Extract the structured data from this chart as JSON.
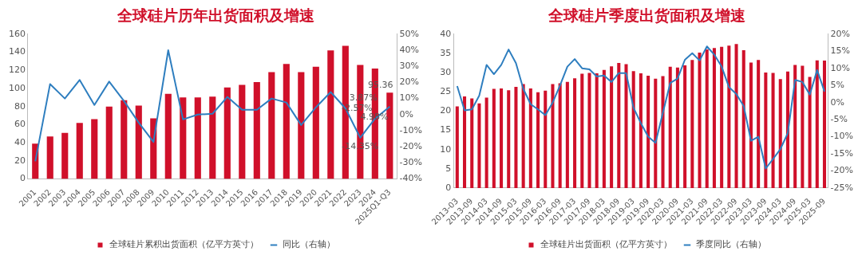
{
  "chart_data": [
    {
      "type": "bar",
      "title": "全球硅片历年出货面积及增速",
      "categories": [
        "2001",
        "2002",
        "2003",
        "2004",
        "2005",
        "2006",
        "2007",
        "2008",
        "2009",
        "2010",
        "2011",
        "2012",
        "2013",
        "2014",
        "2015",
        "2016",
        "2017",
        "2018",
        "2019",
        "2020",
        "2021",
        "2022",
        "2023",
        "2024",
        "2025Q1-Q3"
      ],
      "series": [
        {
          "name": "全球硅片累积出货面积（亿平方英寸）",
          "color": "#d0102a",
          "values": [
            39,
            47,
            51,
            62,
            66,
            80,
            87,
            81,
            67,
            94,
            90,
            90,
            91,
            101,
            104,
            107,
            118,
            127,
            118,
            124,
            142,
            147,
            126,
            122,
            95.36
          ],
          "value_labels": [
            null,
            null,
            null,
            null,
            null,
            null,
            null,
            null,
            null,
            null,
            null,
            null,
            null,
            null,
            null,
            null,
            null,
            null,
            null,
            null,
            null,
            null,
            null,
            null,
            "95.36"
          ]
        },
        {
          "name": "同比（右轴）",
          "type": "line",
          "axis": "y2",
          "color": "#2e7ebf",
          "values": [
            -29,
            19,
            10,
            21.5,
            6,
            20.5,
            8.5,
            -5,
            -17,
            40,
            -3,
            0,
            0.5,
            11,
            3,
            3,
            10,
            7.5,
            -6.5,
            4.5,
            14,
            3.87,
            -14.35,
            -2.57,
            4.98
          ],
          "value_labels": [
            null,
            null,
            null,
            null,
            null,
            null,
            null,
            null,
            null,
            null,
            null,
            null,
            null,
            null,
            null,
            null,
            null,
            null,
            null,
            null,
            null,
            "3.87%",
            "-14.35%",
            "-2.57%",
            "4.98%"
          ]
        }
      ],
      "ylim": [
        0,
        160
      ],
      "yticks": [
        0,
        20,
        40,
        60,
        80,
        100,
        120,
        140,
        160
      ],
      "y2lim": [
        -40,
        50
      ],
      "y2ticks": [
        {
          "value": -40,
          "label": "-40%"
        },
        {
          "value": -30,
          "label": "-30%"
        },
        {
          "value": -20,
          "label": "-20%"
        },
        {
          "value": -10,
          "label": "-10%"
        },
        {
          "value": 0,
          "label": "0%"
        },
        {
          "value": 10,
          "label": "10%"
        },
        {
          "value": 20,
          "label": "20%"
        },
        {
          "value": 30,
          "label": "30%"
        },
        {
          "value": 40,
          "label": "40%"
        },
        {
          "value": 50,
          "label": "50%"
        }
      ],
      "grid": false,
      "legend": "bottom",
      "marker": "none",
      "line_style": "solid"
    },
    {
      "type": "bar",
      "title": "全球硅片季度出货面积及增速",
      "categories": [
        "2013-03",
        null,
        "2013-09",
        null,
        "2014-03",
        null,
        "2014-09",
        null,
        "2015-03",
        null,
        "2015-09",
        null,
        "2016-03",
        null,
        "2016-09",
        null,
        "2017-03",
        null,
        "2017-09",
        null,
        "2018-03",
        null,
        "2018-09",
        null,
        "2019-03",
        null,
        "2019-09",
        null,
        "2020-03",
        null,
        "2020-09",
        null,
        "2021-03",
        null,
        "2021-09",
        null,
        "2022-03",
        null,
        "2022-09",
        null,
        "2023-03",
        null,
        "2023-09",
        null,
        "2024-03",
        null,
        "2024-09",
        null,
        "2025-03",
        null,
        "2025-09"
      ],
      "series": [
        {
          "name": "全球硅片出货面积（亿平方英寸）",
          "color": "#d0102a",
          "values": [
            21.2,
            23.8,
            23.3,
            22,
            23.5,
            25.8,
            25.9,
            25.4,
            26.3,
            27,
            25.9,
            24.9,
            25.3,
            27,
            27.2,
            27.6,
            28.5,
            29.7,
            29.9,
            29.8,
            30.7,
            31.6,
            32.5,
            32.2,
            30.4,
            29.8,
            29.2,
            28.4,
            29.1,
            31.5,
            31.3,
            31.9,
            33.3,
            35.2,
            36,
            36.4,
            36.7,
            37,
            37.4,
            35.8,
            32.6,
            33.3,
            30,
            29.9,
            28.3,
            30.3,
            32,
            31.8,
            28.9,
            33.2,
            33.1
          ]
        },
        {
          "name": "季度同比（右轴）",
          "type": "line",
          "axis": "y2",
          "color": "#2e7ebf",
          "values": [
            4.8,
            -2.3,
            -2,
            2,
            11,
            8.3,
            11,
            15.5,
            11.5,
            4,
            -0.5,
            -2,
            -3.7,
            0,
            5,
            10.5,
            12.7,
            10,
            9.7,
            7.6,
            7.9,
            6,
            8.6,
            8.6,
            -1.5,
            -6,
            -10,
            -11.8,
            -3,
            5.7,
            7,
            12.5,
            14.4,
            12.3,
            16.4,
            14,
            10.5,
            4.5,
            2.5,
            -1,
            -11.2,
            -10,
            -19.3,
            -16.5,
            -13.6,
            -9,
            6.6,
            6,
            2.3,
            9.5,
            3.2
          ]
        }
      ],
      "ylim": [
        0,
        40
      ],
      "yticks": [
        0,
        5,
        10,
        15,
        20,
        25,
        30,
        35,
        40
      ],
      "y2lim": [
        -25,
        20
      ],
      "y2ticks": [
        {
          "value": -25,
          "label": "-25%"
        },
        {
          "value": -20,
          "label": "-20%"
        },
        {
          "value": -15,
          "label": "-15%"
        },
        {
          "value": -10,
          "label": "-10%"
        },
        {
          "value": -5,
          "label": "-5%"
        },
        {
          "value": 0,
          "label": "0%"
        },
        {
          "value": 5,
          "label": "5%"
        },
        {
          "value": 10,
          "label": "10%"
        },
        {
          "value": 15,
          "label": "15%"
        },
        {
          "value": 20,
          "label": "20%"
        }
      ],
      "grid": false,
      "legend": "bottom",
      "marker": "none",
      "line_style": "solid"
    }
  ]
}
